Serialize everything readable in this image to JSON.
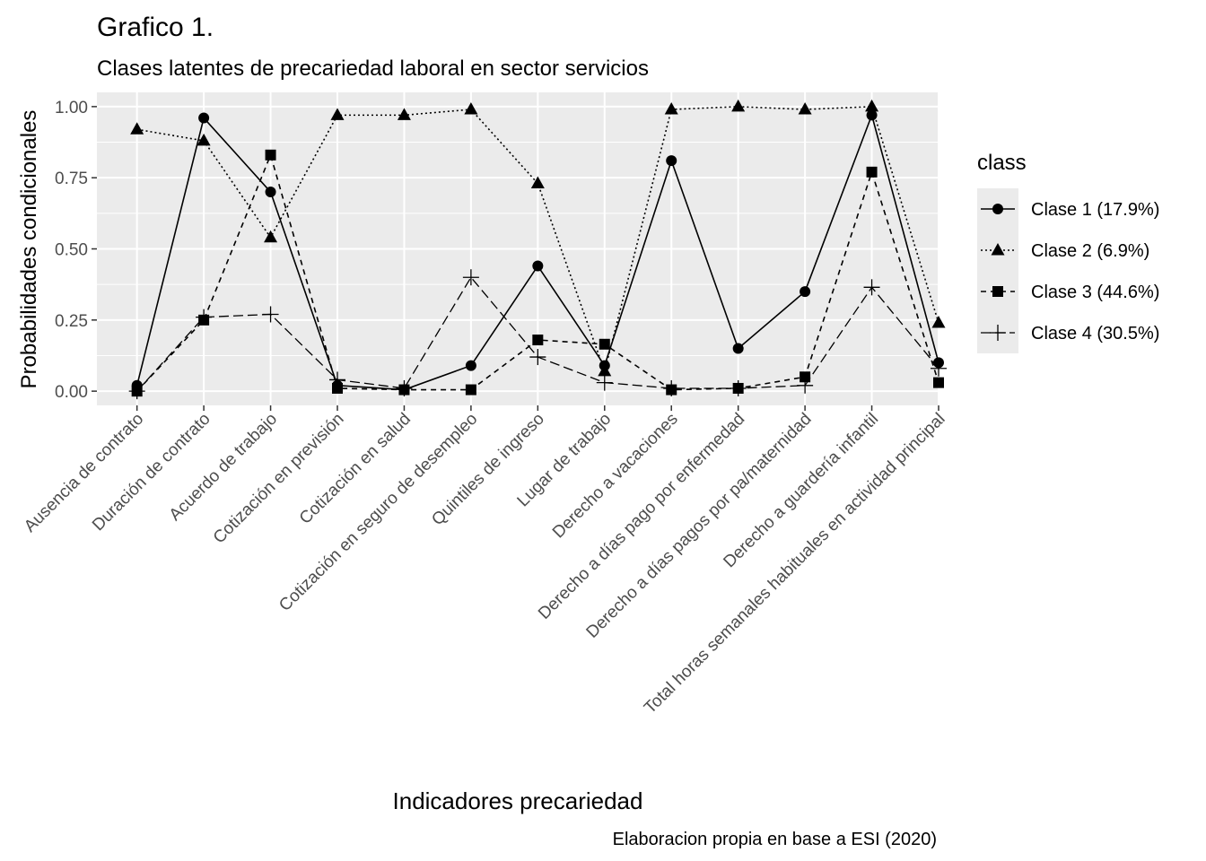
{
  "chart_data": {
    "type": "line",
    "title": "Grafico 1.",
    "subtitle": "Clases latentes de precariedad laboral en sector servicios",
    "xlabel": "Indicadores precariedad",
    "ylabel": "Probabilidades condicionales",
    "caption": "Elaboracion propia en base a ESI (2020)",
    "legend_title": "class",
    "legend_position": "right",
    "grid": true,
    "ylim": [
      -0.05,
      1.05
    ],
    "y_ticks": [
      "0.00",
      "0.25",
      "0.50",
      "0.75",
      "1.00"
    ],
    "categories": [
      "Ausencia de contrato",
      "Duración de contrato",
      "Acuerdo de trabajo",
      "Cotización en previsión",
      "Cotización en salud",
      "Cotización en seguro de desempleo",
      "Quintiles de ingreso",
      "Lugar de trabajo",
      "Derecho a vacaciones",
      "Derecho a días pago por enfermedad",
      "Derecho a días pagos por pa/maternidad",
      "Derecho a guardería infantil",
      "Total horas semanales habituales en actividad principal"
    ],
    "series": [
      {
        "name": "Clase 1 (17.9%)",
        "marker": "circle",
        "line": "solid",
        "values": [
          0.02,
          0.96,
          0.7,
          0.02,
          0.005,
          0.09,
          0.44,
          0.09,
          0.81,
          0.15,
          0.35,
          0.97,
          0.1
        ]
      },
      {
        "name": "Clase 2 (6.9%)",
        "marker": "triangle",
        "line": "dotted",
        "values": [
          0.92,
          0.88,
          0.54,
          0.97,
          0.97,
          0.99,
          0.73,
          0.07,
          0.99,
          1.0,
          0.99,
          1.0,
          0.24
        ]
      },
      {
        "name": "Clase 3 (44.6%)",
        "marker": "square",
        "line": "dashed",
        "values": [
          0.0,
          0.25,
          0.83,
          0.01,
          0.005,
          0.005,
          0.18,
          0.165,
          0.005,
          0.01,
          0.05,
          0.77,
          0.03
        ]
      },
      {
        "name": "Clase 4 (30.5%)",
        "marker": "plus",
        "line": "longdash",
        "values": [
          0.0,
          0.26,
          0.27,
          0.04,
          0.01,
          0.4,
          0.12,
          0.03,
          0.01,
          0.01,
          0.02,
          0.365,
          0.08
        ]
      }
    ]
  }
}
